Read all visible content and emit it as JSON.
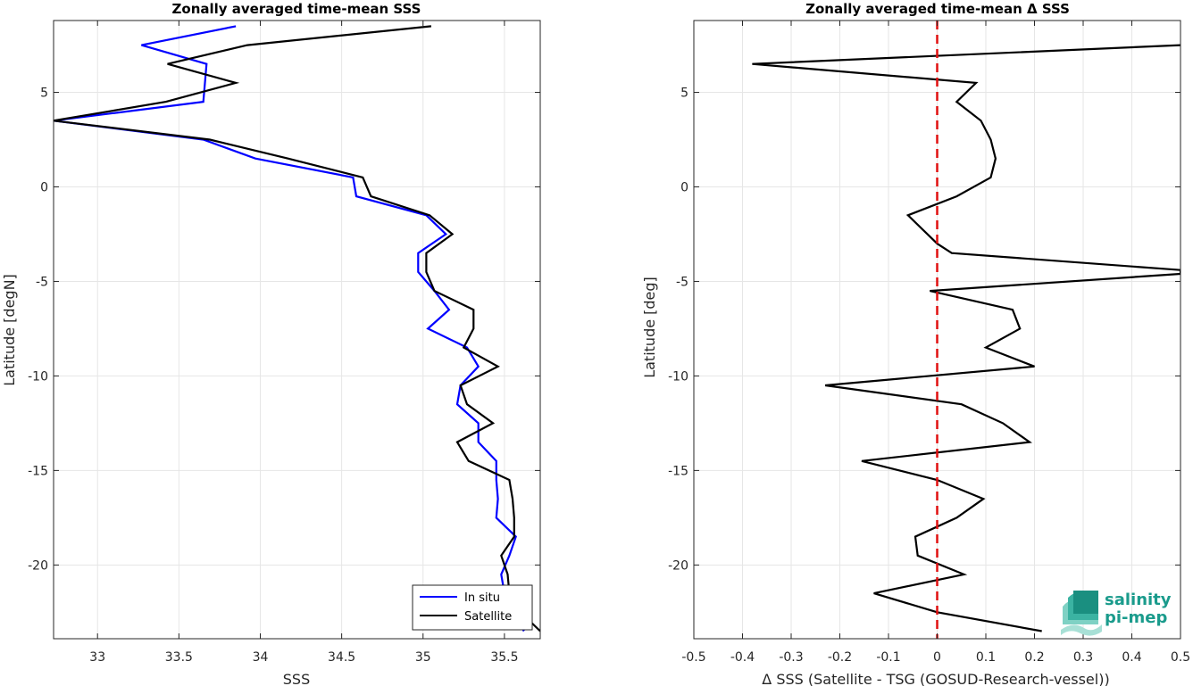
{
  "colors": {
    "insitu": "#0000ff",
    "satellite": "#000000",
    "zero_line": "#e01010",
    "grid": "#e6e6e6",
    "logo": "#1a9b8c"
  },
  "chart_data": [
    {
      "type": "line",
      "title": "Zonally averaged time-mean SSS",
      "xlabel": "SSS",
      "ylabel": "Latitude [degN]",
      "xlim": [
        32.73,
        35.72
      ],
      "ylim": [
        -23.9,
        8.8
      ],
      "xticks": [
        33,
        33.5,
        34,
        34.5,
        35,
        35.5
      ],
      "xtick_labels": [
        "33",
        "33.5",
        "34",
        "34.5",
        "35",
        "35.5"
      ],
      "yticks": [
        -20,
        -15,
        -10,
        -5,
        0,
        5
      ],
      "ytick_labels": [
        "-20",
        "-15",
        "-10",
        "-5",
        "0",
        "5"
      ],
      "grid": true,
      "legend_position": "bottom-right",
      "series": [
        {
          "name": "In situ",
          "color_key": "insitu",
          "points": [
            [
              33.85,
              8.5
            ],
            [
              33.27,
              7.5
            ],
            [
              33.67,
              6.5
            ],
            [
              33.65,
              4.5
            ],
            [
              32.73,
              3.5
            ],
            [
              33.65,
              2.5
            ],
            [
              33.97,
              1.5
            ],
            [
              34.57,
              0.5
            ],
            [
              34.59,
              -0.5
            ],
            [
              35.02,
              -1.5
            ],
            [
              35.14,
              -2.5
            ],
            [
              34.97,
              -3.5
            ],
            [
              34.97,
              -4.5
            ],
            [
              35.07,
              -5.5
            ],
            [
              35.16,
              -6.5
            ],
            [
              35.03,
              -7.5
            ],
            [
              35.27,
              -8.5
            ],
            [
              35.34,
              -9.5
            ],
            [
              35.23,
              -10.5
            ],
            [
              35.21,
              -11.5
            ],
            [
              35.34,
              -12.5
            ],
            [
              35.34,
              -13.5
            ],
            [
              35.45,
              -14.5
            ],
            [
              35.45,
              -15.5
            ],
            [
              35.46,
              -16.5
            ],
            [
              35.45,
              -17.5
            ],
            [
              35.57,
              -18.5
            ],
            [
              35.53,
              -19.5
            ],
            [
              35.48,
              -20.5
            ],
            [
              35.5,
              -21.5
            ],
            [
              35.55,
              -22.5
            ],
            [
              35.62,
              -23.5
            ]
          ]
        },
        {
          "name": "Satellite",
          "color_key": "satellite",
          "points": [
            [
              35.05,
              8.5
            ],
            [
              33.92,
              7.5
            ],
            [
              33.43,
              6.5
            ],
            [
              33.85,
              5.5
            ],
            [
              33.42,
              4.5
            ],
            [
              32.73,
              3.5
            ],
            [
              33.69,
              2.5
            ],
            [
              34.17,
              1.5
            ],
            [
              34.63,
              0.5
            ],
            [
              34.68,
              -0.5
            ],
            [
              35.04,
              -1.5
            ],
            [
              35.18,
              -2.5
            ],
            [
              35.02,
              -3.5
            ],
            [
              35.02,
              -4.5
            ],
            [
              35.07,
              -5.5
            ],
            [
              35.31,
              -6.5
            ],
            [
              35.31,
              -7.5
            ],
            [
              35.25,
              -8.5
            ],
            [
              35.46,
              -9.5
            ],
            [
              35.23,
              -10.5
            ],
            [
              35.27,
              -11.5
            ],
            [
              35.43,
              -12.5
            ],
            [
              35.21,
              -13.5
            ],
            [
              35.28,
              -14.5
            ],
            [
              35.53,
              -15.5
            ],
            [
              35.55,
              -16.5
            ],
            [
              35.56,
              -17.5
            ],
            [
              35.56,
              -18.5
            ],
            [
              35.48,
              -19.5
            ],
            [
              35.52,
              -20.5
            ],
            [
              35.53,
              -21.5
            ],
            [
              35.6,
              -22.5
            ],
            [
              35.72,
              -23.5
            ]
          ]
        }
      ]
    },
    {
      "type": "line",
      "title": "Zonally averaged time-mean Δ SSS",
      "xlabel": "Δ SSS (Satellite - TSG (GOSUD-Research-vessel))",
      "ylabel": "Latitude [deg]",
      "xlim": [
        -0.5,
        0.5
      ],
      "ylim": [
        -23.9,
        8.8
      ],
      "xticks": [
        -0.5,
        -0.4,
        -0.3,
        -0.2,
        -0.1,
        0,
        0.1,
        0.2,
        0.3,
        0.4,
        0.5
      ],
      "xtick_labels": [
        "-0.5",
        "-0.4",
        "-0.3",
        "-0.2",
        "-0.1",
        "0",
        "0.1",
        "0.2",
        "0.3",
        "0.4",
        "0.5"
      ],
      "yticks": [
        -20,
        -15,
        -10,
        -5,
        0,
        5
      ],
      "ytick_labels": [
        "-20",
        "-15",
        "-10",
        "-5",
        "0",
        "5"
      ],
      "grid": true,
      "zero_line": 0,
      "series": [
        {
          "color_key": "satellite",
          "points": [
            [
              0.5,
              7.5
            ],
            [
              -0.38,
              6.5
            ],
            [
              0.08,
              5.5
            ],
            [
              0.04,
              4.5
            ],
            [
              0.09,
              3.5
            ],
            [
              0.11,
              2.5
            ],
            [
              0.12,
              1.5
            ],
            [
              0.11,
              0.5
            ],
            [
              0.04,
              -0.5
            ],
            [
              -0.06,
              -1.5
            ],
            [
              0.0,
              -3
            ],
            [
              0.03,
              -3.5
            ],
            [
              0.5,
              -4.4
            ],
            [
              0.5,
              -4.6
            ],
            [
              -0.015,
              -5.5
            ],
            [
              0.155,
              -6.5
            ],
            [
              0.17,
              -7.5
            ],
            [
              0.1,
              -8.5
            ],
            [
              0.2,
              -9.5
            ],
            [
              -0.23,
              -10.5
            ],
            [
              0.05,
              -11.5
            ],
            [
              0.135,
              -12.5
            ],
            [
              0.19,
              -13.5
            ],
            [
              -0.155,
              -14.5
            ],
            [
              0.0,
              -15.5
            ],
            [
              0.095,
              -16.5
            ],
            [
              0.04,
              -17.5
            ],
            [
              -0.045,
              -18.5
            ],
            [
              -0.04,
              -19.5
            ],
            [
              0.055,
              -20.5
            ],
            [
              -0.13,
              -21.5
            ],
            [
              0.0,
              -22.5
            ],
            [
              0.215,
              -23.5
            ]
          ]
        }
      ]
    }
  ],
  "logo": {
    "line1": "salinity",
    "line2": "pi-mep"
  }
}
